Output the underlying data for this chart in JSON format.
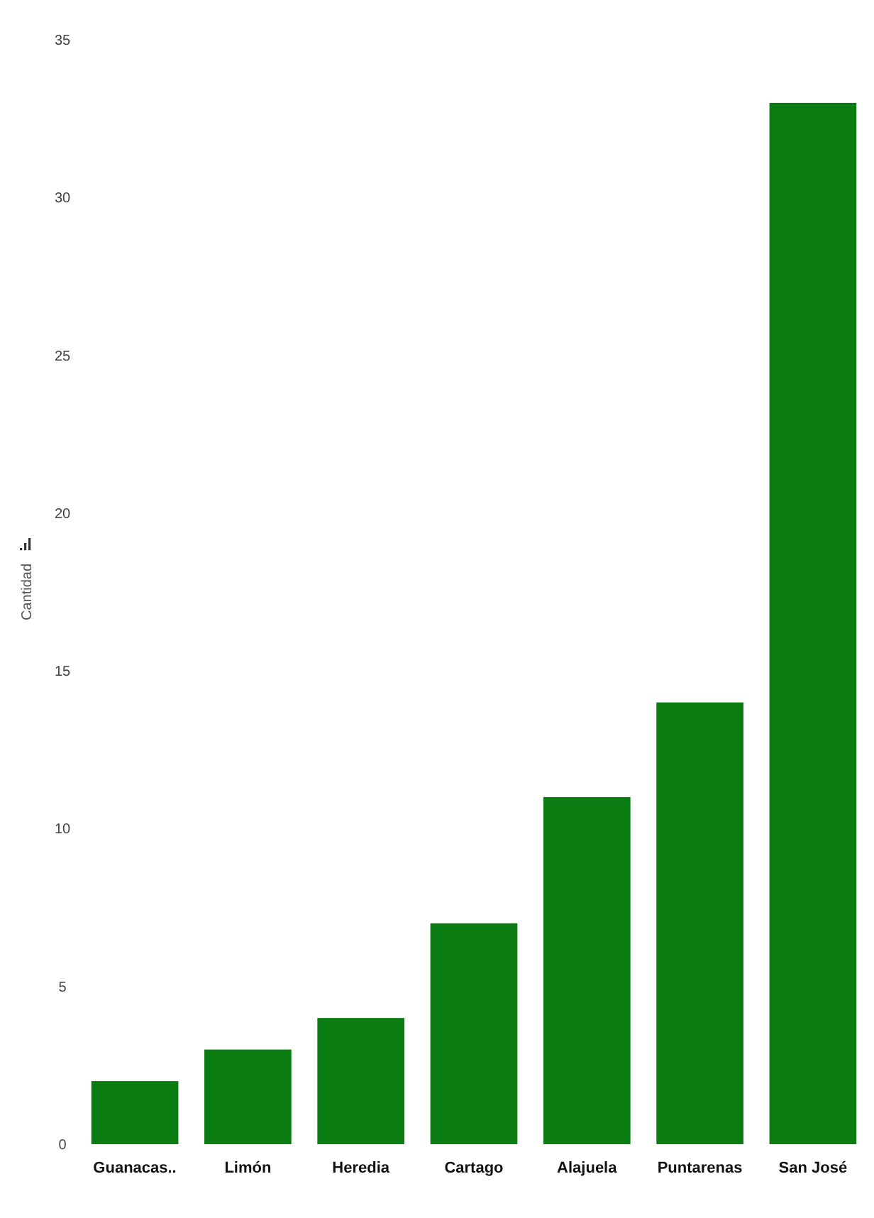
{
  "chart_data": {
    "type": "bar",
    "ylabel": "Cantidad",
    "categories": [
      "Guanacas..",
      "Limón",
      "Heredia",
      "Cartago",
      "Alajuela",
      "Puntarenas",
      "San José"
    ],
    "values": [
      2,
      3,
      4,
      7,
      11,
      14,
      33
    ],
    "color": "#0a7c12",
    "ylim": [
      0,
      35
    ],
    "yticks": [
      0,
      5,
      10,
      15,
      20,
      25,
      30,
      35
    ]
  }
}
